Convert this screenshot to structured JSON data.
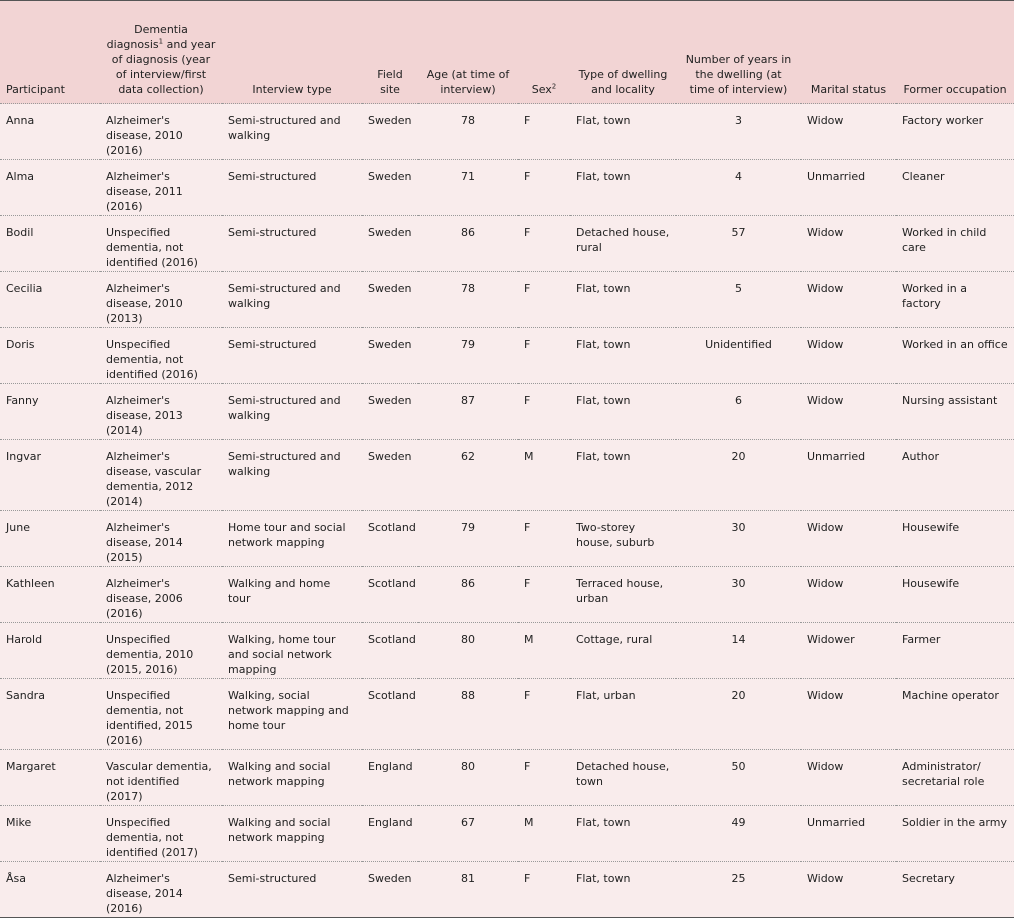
{
  "table": {
    "headers": [
      "Participant",
      {
        "before": "Dementia diagnosis",
        "sup": "1",
        "after": " and year of diagnosis (year of interview/first data collection)"
      },
      "Interview type",
      "Field site",
      "Age (at time of interview)",
      {
        "before": "Sex",
        "sup": "2",
        "after": ""
      },
      "Type of dwelling and locality",
      "Number of years in the dwelling (at time of interview)",
      "Marital status",
      "Former occupation"
    ],
    "rows": [
      [
        "Anna",
        "Alzheimer's disease, 2010 (2016)",
        "Semi-structured and walking",
        "Sweden",
        "78",
        "F",
        "Flat, town",
        "3",
        "Widow",
        "Factory worker"
      ],
      [
        "Alma",
        "Alzheimer's disease, 2011 (2016)",
        "Semi-structured",
        "Sweden",
        "71",
        "F",
        "Flat, town",
        "4",
        "Unmarried",
        "Cleaner"
      ],
      [
        "Bodil",
        "Unspecified dementia, not identified (2016)",
        "Semi-structured",
        "Sweden",
        "86",
        "F",
        "Detached house, rural",
        "57",
        "Widow",
        "Worked in child care"
      ],
      [
        "Cecilia",
        "Alzheimer's disease, 2010 (2013)",
        "Semi-structured and walking",
        "Sweden",
        "78",
        "F",
        "Flat, town",
        "5",
        "Widow",
        "Worked in a factory"
      ],
      [
        "Doris",
        "Unspecified dementia, not identified (2016)",
        "Semi-structured",
        "Sweden",
        "79",
        "F",
        "Flat, town",
        "Unidentified",
        "Widow",
        "Worked in an office"
      ],
      [
        "Fanny",
        "Alzheimer's disease, 2013 (2014)",
        "Semi-structured and walking",
        "Sweden",
        "87",
        "F",
        "Flat, town",
        "6",
        "Widow",
        "Nursing assistant"
      ],
      [
        "Ingvar",
        "Alzheimer's disease, vascular dementia, 2012 (2014)",
        "Semi-structured and walking",
        "Sweden",
        "62",
        "M",
        "Flat, town",
        "20",
        "Unmarried",
        "Author"
      ],
      [
        "June",
        "Alzheimer's disease, 2014 (2015)",
        "Home tour and social network mapping",
        "Scotland",
        "79",
        "F",
        "Two-storey house, suburb",
        "30",
        "Widow",
        "Housewife"
      ],
      [
        "Kathleen",
        "Alzheimer's disease, 2006 (2016)",
        "Walking and home tour",
        "Scotland",
        "86",
        "F",
        "Terraced house, urban",
        "30",
        "Widow",
        "Housewife"
      ],
      [
        "Harold",
        "Unspecified dementia, 2010 (2015, 2016)",
        "Walking, home tour and social network mapping",
        "Scotland",
        "80",
        "M",
        "Cottage, rural",
        "14",
        "Widower",
        "Farmer"
      ],
      [
        "Sandra",
        "Unspecified dementia, not identified, 2015 (2016)",
        "Walking, social network mapping and home tour",
        "Scotland",
        "88",
        "F",
        "Flat, urban",
        "20",
        "Widow",
        "Machine operator"
      ],
      [
        "Margaret",
        "Vascular dementia, not identified (2017)",
        "Walking and social network mapping",
        "England",
        "80",
        "F",
        "Detached house, town",
        "50",
        "Widow",
        "Administrator/ secretarial role"
      ],
      [
        "Mike",
        "Unspecified dementia, not identified (2017)",
        "Walking and social network mapping",
        "England",
        "67",
        "M",
        "Flat, town",
        "49",
        "Unmarried",
        "Soldier in the army"
      ],
      [
        "Åsa",
        "Alzheimer's disease, 2014 (2016)",
        "Semi-structured",
        "Sweden",
        "81",
        "F",
        "Flat, town",
        "25",
        "Widow",
        "Secretary"
      ]
    ]
  }
}
